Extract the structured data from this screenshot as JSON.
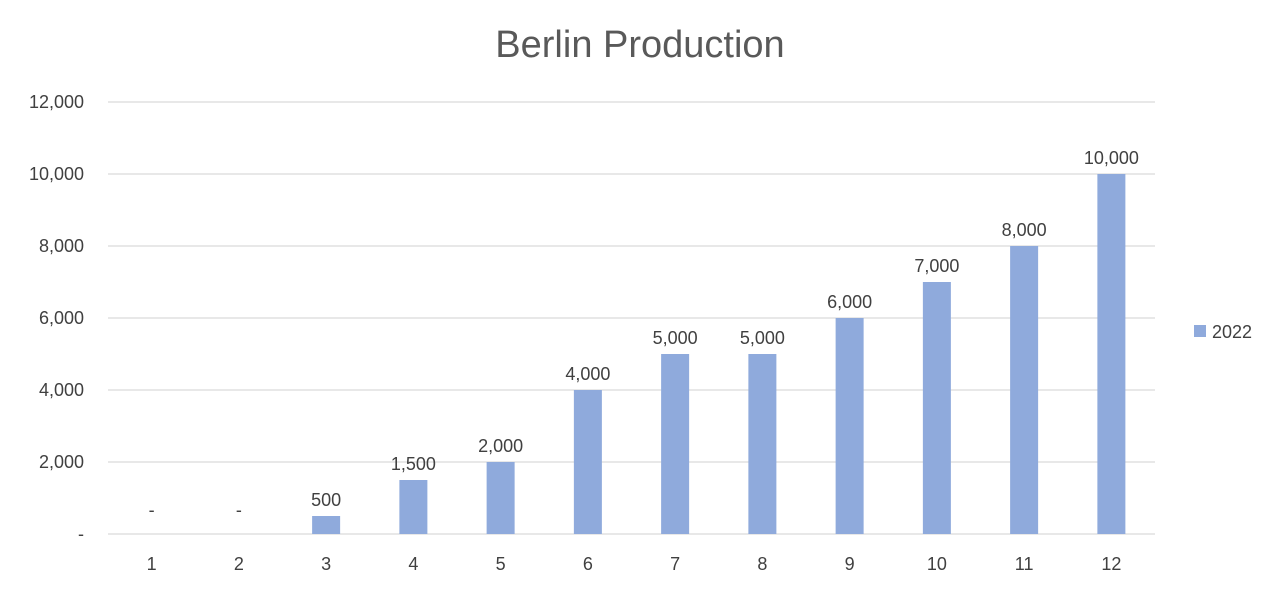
{
  "chart_data": {
    "type": "bar",
    "title": "Berlin Production",
    "xlabel": "",
    "ylabel": "",
    "categories": [
      "1",
      "2",
      "3",
      "4",
      "5",
      "6",
      "7",
      "8",
      "9",
      "10",
      "11",
      "12"
    ],
    "series": [
      {
        "name": "2022",
        "values": [
          0,
          0,
          500,
          1500,
          2000,
          4000,
          5000,
          5000,
          6000,
          7000,
          8000,
          10000
        ],
        "data_labels": [
          "-",
          "-",
          "500",
          "1,500",
          "2,000",
          "4,000",
          "5,000",
          "5,000",
          "6,000",
          "7,000",
          "8,000",
          "10,000"
        ],
        "color": "#8faadc"
      }
    ],
    "ylim": [
      0,
      12000
    ],
    "yticks": [
      0,
      2000,
      4000,
      6000,
      8000,
      10000,
      12000
    ],
    "ytick_labels": [
      "-",
      "2,000",
      "4,000",
      "6,000",
      "8,000",
      "10,000",
      "12,000"
    ],
    "grid": true,
    "legend_position": "right"
  }
}
